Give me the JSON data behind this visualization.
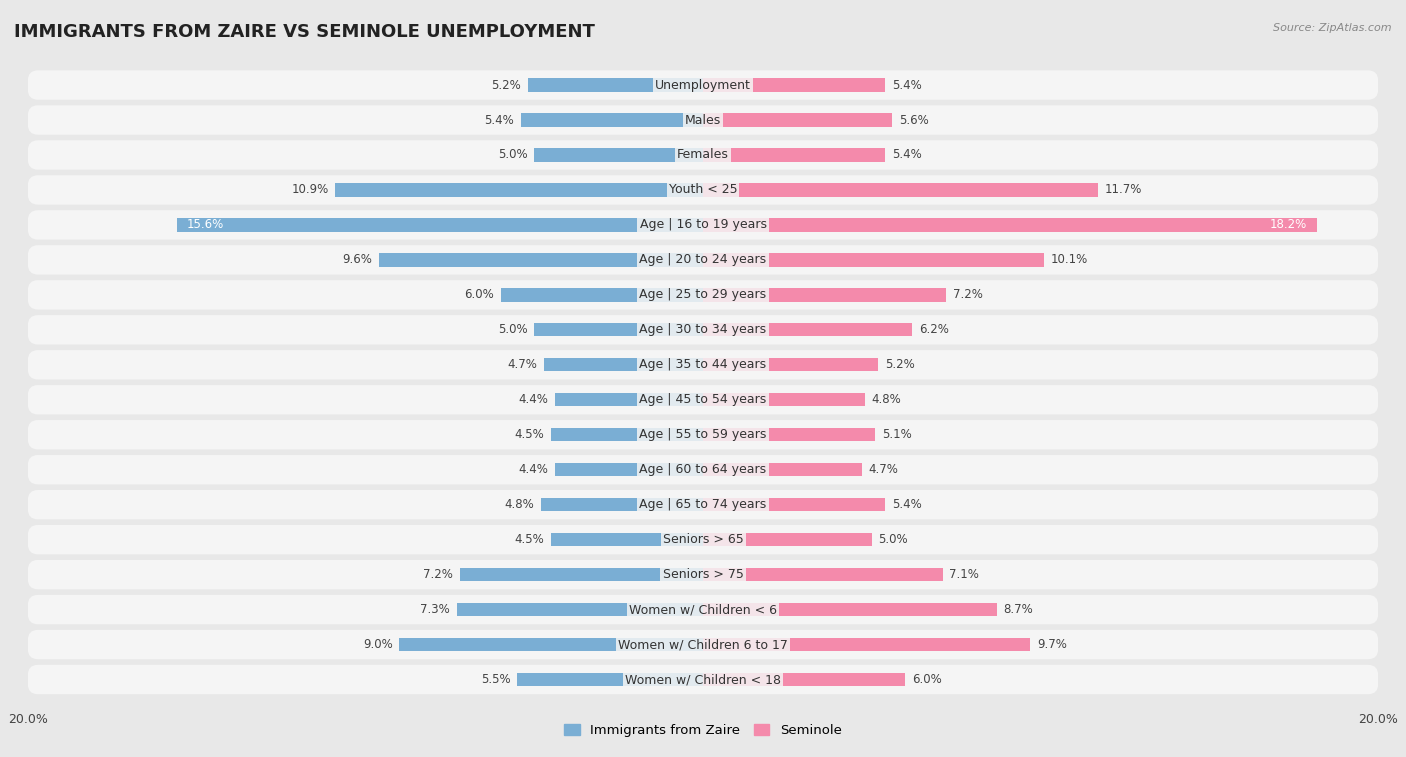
{
  "title": "IMMIGRANTS FROM ZAIRE VS SEMINOLE UNEMPLOYMENT",
  "source": "Source: ZipAtlas.com",
  "categories": [
    "Unemployment",
    "Males",
    "Females",
    "Youth < 25",
    "Age | 16 to 19 years",
    "Age | 20 to 24 years",
    "Age | 25 to 29 years",
    "Age | 30 to 34 years",
    "Age | 35 to 44 years",
    "Age | 45 to 54 years",
    "Age | 55 to 59 years",
    "Age | 60 to 64 years",
    "Age | 65 to 74 years",
    "Seniors > 65",
    "Seniors > 75",
    "Women w/ Children < 6",
    "Women w/ Children 6 to 17",
    "Women w/ Children < 18"
  ],
  "left_values": [
    5.2,
    5.4,
    5.0,
    10.9,
    15.6,
    9.6,
    6.0,
    5.0,
    4.7,
    4.4,
    4.5,
    4.4,
    4.8,
    4.5,
    7.2,
    7.3,
    9.0,
    5.5
  ],
  "right_values": [
    5.4,
    5.6,
    5.4,
    11.7,
    18.2,
    10.1,
    7.2,
    6.2,
    5.2,
    4.8,
    5.1,
    4.7,
    5.4,
    5.0,
    7.1,
    8.7,
    9.7,
    6.0
  ],
  "left_color": "#7aaed4",
  "right_color": "#f48aab",
  "left_label": "Immigrants from Zaire",
  "right_label": "Seminole",
  "xlim": 20.0,
  "background_color": "#e8e8e8",
  "row_bg_color": "#f5f5f5",
  "title_fontsize": 13,
  "label_fontsize": 9,
  "value_fontsize": 8.5
}
